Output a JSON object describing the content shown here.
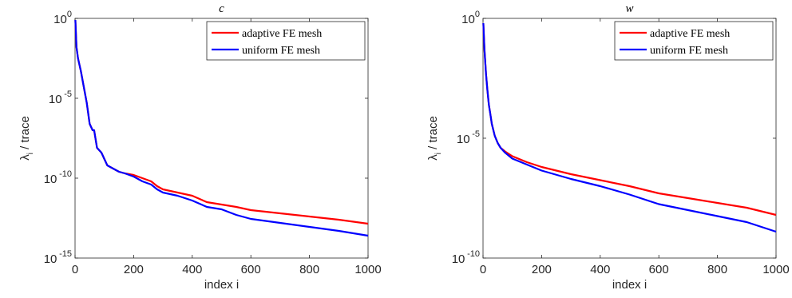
{
  "chart_data": [
    {
      "type": "line",
      "title": "c",
      "xlabel": "index i",
      "ylabel_main": "λ",
      "ylabel_sub": "i",
      "ylabel_rest": " / trace",
      "yscale": "log",
      "xlim": [
        0,
        1000
      ],
      "ylim_exp": [
        -15,
        0
      ],
      "xticks": [
        0,
        200,
        400,
        600,
        800,
        1000
      ],
      "yticks_exp": [
        0,
        -5,
        -10,
        -15
      ],
      "ytick_base": "10",
      "legend_position": "top-right",
      "series": [
        {
          "name": "adaptive FE mesh",
          "color": "#ff0000",
          "x": [
            1,
            5,
            10,
            20,
            30,
            40,
            50,
            60,
            65,
            75,
            90,
            100,
            110,
            130,
            150,
            170,
            200,
            230,
            260,
            280,
            300,
            350,
            400,
            450,
            500,
            550,
            600,
            700,
            800,
            900,
            1000
          ],
          "log10_y": [
            -0.1,
            -1.8,
            -2.5,
            -3.3,
            -4.3,
            -5.3,
            -6.6,
            -7.0,
            -7.0,
            -8.1,
            -8.4,
            -8.8,
            -9.2,
            -9.4,
            -9.6,
            -9.7,
            -9.8,
            -10.0,
            -10.2,
            -10.5,
            -10.7,
            -10.9,
            -11.1,
            -11.5,
            -11.65,
            -11.8,
            -12.0,
            -12.2,
            -12.4,
            -12.6,
            -12.85
          ]
        },
        {
          "name": "uniform FE mesh",
          "color": "#0000ff",
          "x": [
            1,
            5,
            10,
            20,
            30,
            40,
            50,
            60,
            65,
            75,
            90,
            100,
            110,
            130,
            150,
            170,
            200,
            230,
            260,
            280,
            300,
            350,
            400,
            450,
            500,
            550,
            600,
            700,
            800,
            900,
            1000
          ],
          "log10_y": [
            -0.1,
            -1.8,
            -2.5,
            -3.3,
            -4.3,
            -5.3,
            -6.6,
            -7.0,
            -7.0,
            -8.1,
            -8.4,
            -8.8,
            -9.2,
            -9.4,
            -9.6,
            -9.7,
            -9.9,
            -10.2,
            -10.4,
            -10.7,
            -10.9,
            -11.1,
            -11.4,
            -11.8,
            -11.95,
            -12.3,
            -12.55,
            -12.8,
            -13.05,
            -13.3,
            -13.6
          ]
        }
      ]
    },
    {
      "type": "line",
      "title": "w",
      "xlabel": "index i",
      "ylabel_main": "λ",
      "ylabel_sub": "i",
      "ylabel_rest": " / trace",
      "yscale": "log",
      "xlim": [
        0,
        1000
      ],
      "ylim_exp": [
        -10,
        0
      ],
      "xticks": [
        0,
        200,
        400,
        600,
        800,
        1000
      ],
      "yticks_exp": [
        0,
        -5,
        -10
      ],
      "ytick_base": "10",
      "legend_position": "top-right",
      "series": [
        {
          "name": "adaptive FE mesh",
          "color": "#ff0000",
          "x": [
            1,
            5,
            10,
            15,
            20,
            25,
            30,
            40,
            50,
            60,
            75,
            100,
            150,
            200,
            300,
            400,
            500,
            600,
            700,
            800,
            900,
            1000
          ],
          "log10_y": [
            -0.2,
            -1.3,
            -2.3,
            -3.0,
            -3.6,
            -4.0,
            -4.4,
            -4.9,
            -5.2,
            -5.4,
            -5.55,
            -5.75,
            -6.0,
            -6.2,
            -6.5,
            -6.75,
            -7.0,
            -7.3,
            -7.5,
            -7.7,
            -7.9,
            -8.2
          ]
        },
        {
          "name": "uniform FE mesh",
          "color": "#0000ff",
          "x": [
            1,
            5,
            10,
            15,
            20,
            25,
            30,
            40,
            50,
            60,
            75,
            100,
            150,
            200,
            300,
            400,
            500,
            600,
            700,
            800,
            900,
            1000
          ],
          "log10_y": [
            -0.2,
            -1.3,
            -2.3,
            -3.0,
            -3.6,
            -4.0,
            -4.4,
            -4.9,
            -5.2,
            -5.4,
            -5.6,
            -5.85,
            -6.1,
            -6.35,
            -6.7,
            -7.0,
            -7.35,
            -7.75,
            -8.0,
            -8.25,
            -8.5,
            -8.9
          ]
        }
      ]
    }
  ]
}
